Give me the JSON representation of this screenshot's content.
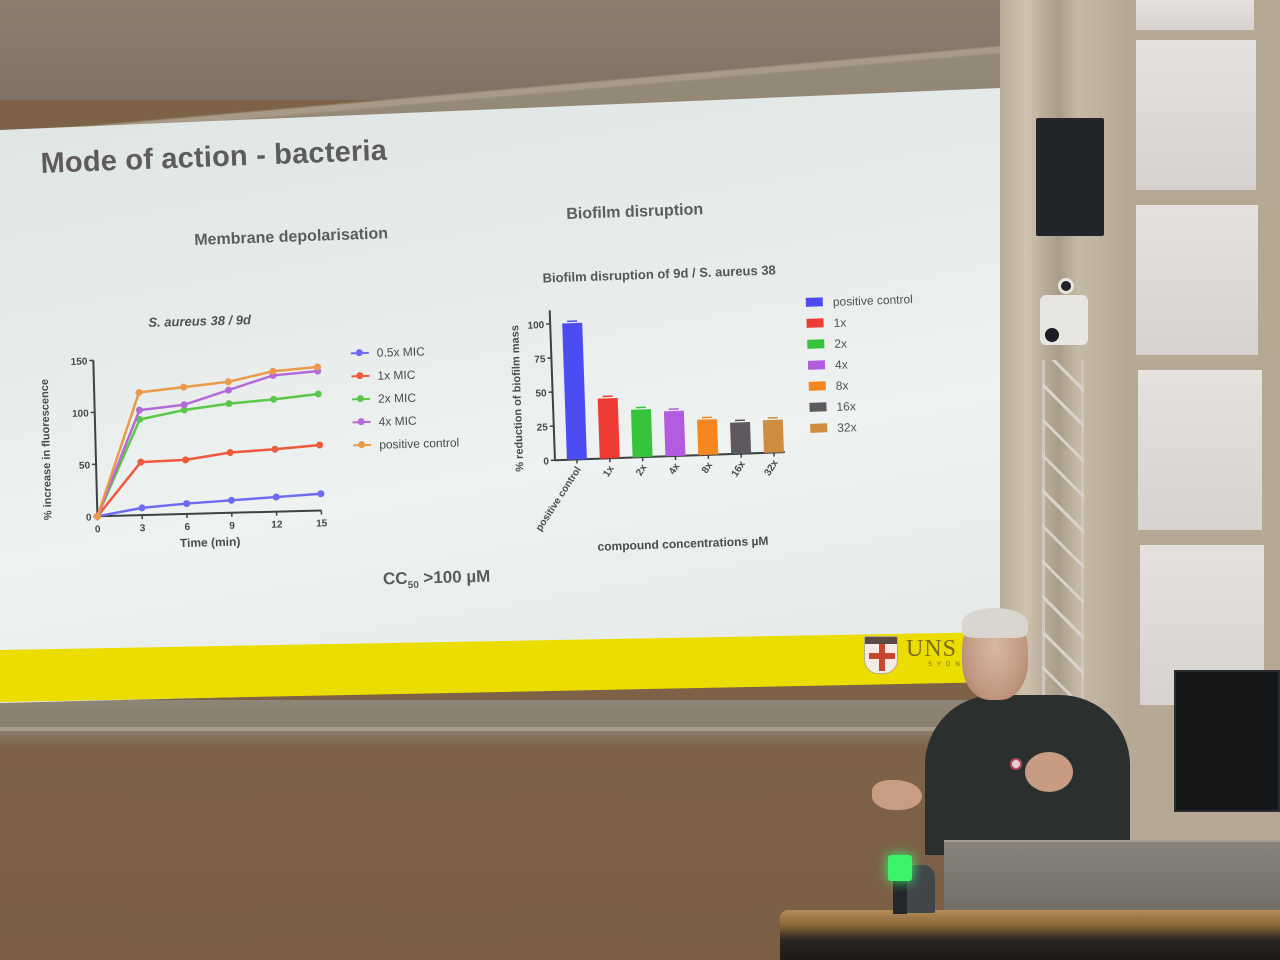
{
  "slide": {
    "title": "Mode of action - bacteria",
    "section_left": "Membrane depolarisation",
    "section_right": "Biofilm disruption",
    "cc50_prefix": "CC",
    "cc50_sub": "50",
    "cc50_value": " >100 µM",
    "footer_color": "#ecdd00",
    "logo": {
      "main": "UNS",
      "sub": "SYDN"
    }
  },
  "line_chart": {
    "title": "S. aureus 38  / 9d",
    "xlabel": "Time (min)",
    "ylabel": "% increase in fluorescence",
    "legend": [
      {
        "label": "0.5x MIC",
        "color": "#6c6cf0"
      },
      {
        "label": "1x MIC",
        "color": "#ee5a3c"
      },
      {
        "label": "2x MIC",
        "color": "#5cc84a"
      },
      {
        "label": "4x MIC",
        "color": "#b46ad8"
      },
      {
        "label": "positive control",
        "color": "#eb9a4a"
      }
    ]
  },
  "bar_chart": {
    "title": "Biofilm disruption of 9d / S. aureus 38",
    "xlabel": "compound concentrations µM",
    "ylabel": "% reduction of biofilm mass",
    "legend": [
      {
        "label": "positive control",
        "color": "#4c4cf2"
      },
      {
        "label": "1x",
        "color": "#ee3b33"
      },
      {
        "label": "2x",
        "color": "#36c43a"
      },
      {
        "label": "4x",
        "color": "#b45ce0"
      },
      {
        "label": "8x",
        "color": "#f4881e"
      },
      {
        "label": "16x",
        "color": "#5e5960"
      },
      {
        "label": "32x",
        "color": "#cf8d42"
      }
    ]
  },
  "chart_data": [
    {
      "type": "line",
      "title": "S. aureus 38  / 9d",
      "xlabel": "Time (min)",
      "ylabel": "% increase in fluorescence",
      "x": [
        0,
        3,
        6,
        9,
        12,
        15
      ],
      "xticks": [
        0,
        3,
        6,
        9,
        12,
        15
      ],
      "yticks": [
        0,
        50,
        100,
        150
      ],
      "ylim": [
        0,
        150
      ],
      "grid": false,
      "legend_position": "right",
      "series": [
        {
          "name": "0.5x MIC",
          "color": "#6c6cf0",
          "values": [
            0,
            7,
            10,
            12,
            14,
            16
          ]
        },
        {
          "name": "1x MIC",
          "color": "#ee5a3c",
          "values": [
            0,
            51,
            52,
            58,
            60,
            63
          ]
        },
        {
          "name": "2x MIC",
          "color": "#5cc84a",
          "values": [
            0,
            92,
            100,
            105,
            108,
            112
          ]
        },
        {
          "name": "4x MIC",
          "color": "#b46ad8",
          "values": [
            0,
            101,
            105,
            118,
            131,
            134
          ]
        },
        {
          "name": "positive control",
          "color": "#eb9a4a",
          "values": [
            0,
            118,
            122,
            126,
            135,
            138
          ]
        }
      ]
    },
    {
      "type": "bar",
      "title": "Biofilm disruption of 9d / S. aureus 38",
      "xlabel": "compound concentrations µM",
      "ylabel": "% reduction of biofilm mass",
      "categories": [
        "positive control",
        "1x",
        "2x",
        "4x",
        "8x",
        "16x",
        "32x"
      ],
      "values": [
        100,
        44,
        35,
        33,
        26,
        23,
        24
      ],
      "colors": [
        "#4c4cf2",
        "#ee3b33",
        "#36c43a",
        "#b45ce0",
        "#f4881e",
        "#5e5960",
        "#cf8d42"
      ],
      "yticks": [
        0,
        25,
        50,
        75,
        100
      ],
      "ylim": [
        0,
        110
      ],
      "grid": false,
      "legend_position": "right"
    }
  ]
}
